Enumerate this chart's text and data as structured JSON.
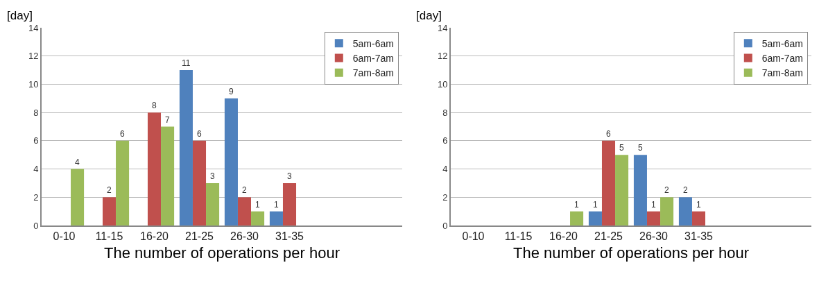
{
  "chart_data": [
    {
      "type": "bar",
      "xlabel": "The number of operations per hour",
      "ylabel": "[day]",
      "categories": [
        "0-10",
        "11-15",
        "16-20",
        "21-25",
        "26-30",
        "31-35",
        null,
        null
      ],
      "series": [
        {
          "name": "5am-6am",
          "color": "#4f81bd",
          "values": [
            0,
            0,
            0,
            11,
            9,
            1,
            null,
            null
          ],
          "value_labels": [
            null,
            null,
            null,
            "11",
            "9",
            "1",
            null,
            null
          ]
        },
        {
          "name": "6am-7am",
          "color": "#c0504d",
          "values": [
            0,
            2,
            8,
            6,
            2,
            3,
            null,
            null
          ],
          "value_labels": [
            null,
            "2",
            "8",
            "6",
            "2",
            "3",
            null,
            null
          ]
        },
        {
          "name": "7am-8am",
          "color": "#9bbb59",
          "values": [
            4,
            6,
            7,
            3,
            1,
            0,
            null,
            null
          ],
          "value_labels": [
            "4",
            "6",
            "7",
            "3",
            "1",
            null,
            null,
            null
          ]
        }
      ],
      "ylim": [
        0,
        14
      ],
      "yticks": [
        0,
        2,
        4,
        6,
        8,
        10,
        12,
        14
      ],
      "grid": "y",
      "legend": "top right"
    },
    {
      "type": "bar",
      "xlabel": "The number of operations per hour",
      "ylabel": "[day]",
      "categories": [
        "0-10",
        "11-15",
        "16-20",
        "21-25",
        "26-30",
        "31-35",
        null,
        null
      ],
      "series": [
        {
          "name": "5am-6am",
          "color": "#4f81bd",
          "values": [
            0,
            0,
            0,
            1,
            5,
            2,
            null,
            null
          ],
          "value_labels": [
            null,
            null,
            null,
            "1",
            "5",
            "2",
            null,
            null
          ]
        },
        {
          "name": "6am-7am",
          "color": "#c0504d",
          "values": [
            0,
            0,
            0,
            6,
            1,
            1,
            null,
            null
          ],
          "value_labels": [
            null,
            null,
            null,
            "6",
            "1",
            "1",
            null,
            null
          ]
        },
        {
          "name": "7am-8am",
          "color": "#9bbb59",
          "values": [
            0,
            0,
            1,
            5,
            2,
            0,
            null,
            null
          ],
          "value_labels": [
            null,
            null,
            "1",
            "5",
            "2",
            null,
            null,
            null
          ]
        }
      ],
      "ylim": [
        0,
        14
      ],
      "yticks": [
        0,
        2,
        4,
        6,
        8,
        10,
        12,
        14
      ],
      "grid": "y",
      "legend": "top right"
    }
  ]
}
